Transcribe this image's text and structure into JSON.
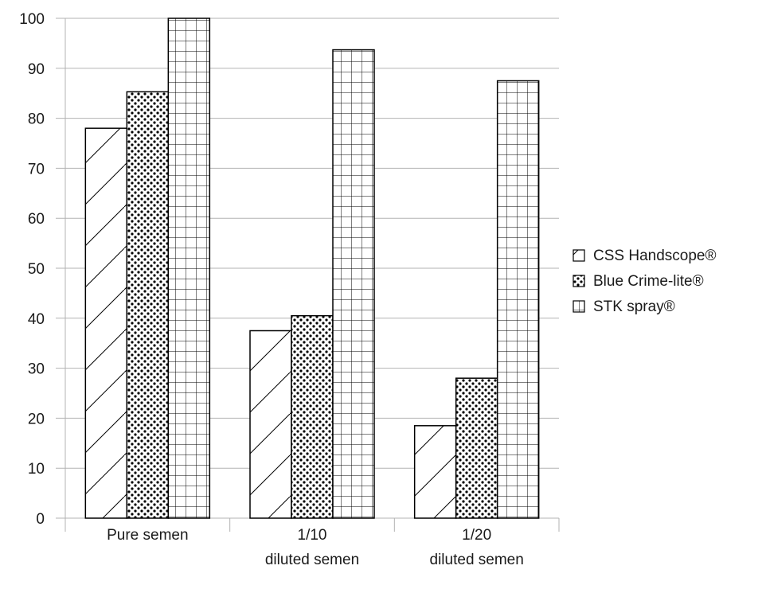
{
  "chart_data": {
    "type": "bar",
    "categories": [
      [
        "Pure semen"
      ],
      [
        "1/10",
        "diluted semen"
      ],
      [
        "1/20",
        "diluted semen"
      ]
    ],
    "series": [
      {
        "name": "CSS Handscope®",
        "values": [
          78,
          37.5,
          18.5
        ],
        "pattern": "diagonal-hatch"
      },
      {
        "name": "Blue Crime-lite®",
        "values": [
          85.3,
          40.5,
          28
        ],
        "pattern": "dots"
      },
      {
        "name": "STK spray®",
        "values": [
          100,
          93.7,
          87.5
        ],
        "pattern": "grid"
      }
    ],
    "ylim": [
      0,
      100
    ],
    "yticks": [
      0,
      10,
      20,
      30,
      40,
      50,
      60,
      70,
      80,
      90,
      100
    ],
    "grid": true,
    "legend_position": "right",
    "colors": {
      "bar_fill": "#ffffff",
      "bar_stroke": "#000000",
      "grid": "#b3b3b3"
    }
  }
}
